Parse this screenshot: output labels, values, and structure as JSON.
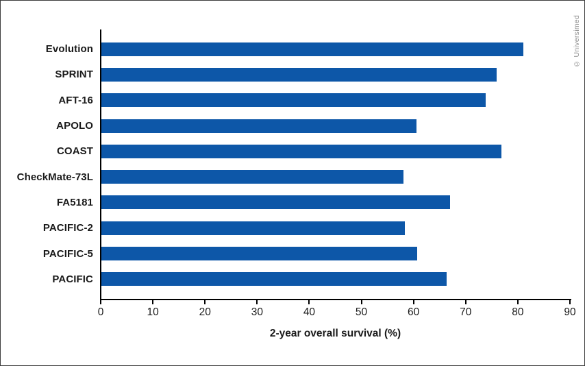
{
  "copyright": "© Universimed",
  "colors": {
    "bar": "#0d57a8",
    "axis": "#000000",
    "text": "#1a1a1a",
    "copyright": "#8e8e8e",
    "frame_border": "#3c3c3c",
    "background": "#ffffff"
  },
  "chart_data": {
    "type": "bar",
    "orientation": "horizontal",
    "title": "",
    "categories": [
      "Evolution",
      "SPRINT",
      "AFT-16",
      "APOLO",
      "COAST",
      "CheckMate-73L",
      "FA5181",
      "PACIFIC-2",
      "PACIFIC-5",
      "PACIFIC"
    ],
    "values": [
      81,
      76,
      73.8,
      60.6,
      76.8,
      58.1,
      67,
      58.4,
      60.7,
      66.4
    ],
    "xlabel": "2-year overall survival (%)",
    "ylabel": "",
    "xlim": [
      0,
      90
    ],
    "xticks": [
      0,
      10,
      20,
      30,
      40,
      50,
      60,
      70,
      80,
      90
    ],
    "grid": false,
    "legend_position": "none"
  }
}
